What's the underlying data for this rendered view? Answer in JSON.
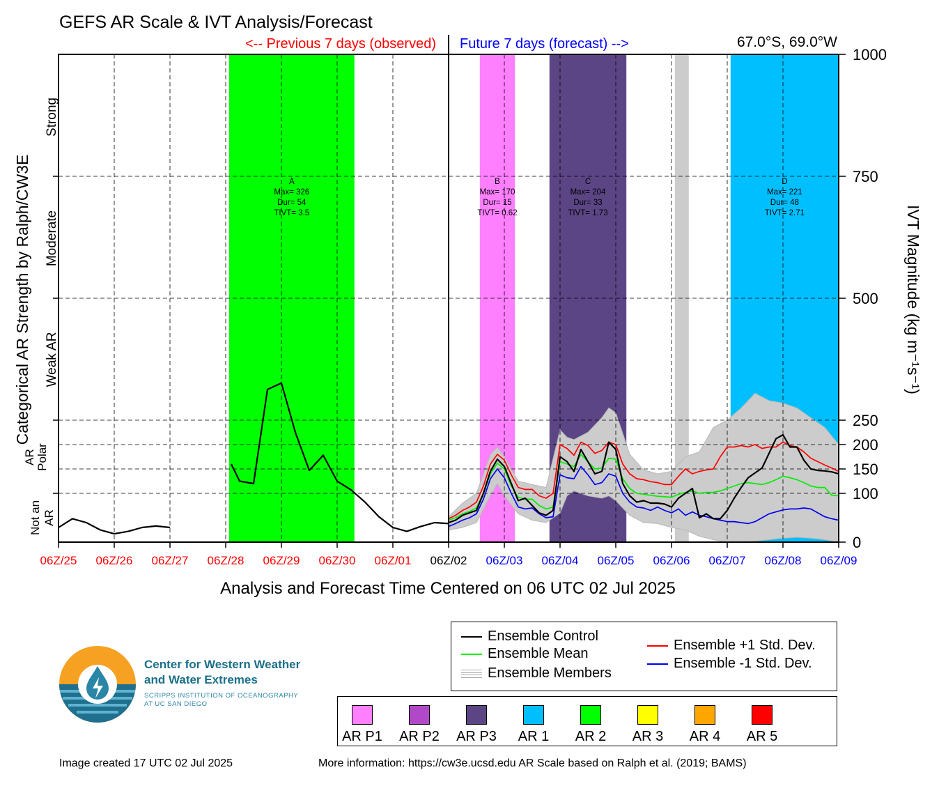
{
  "header": {
    "title": "GEFS AR Scale & IVT Analysis/Forecast",
    "previous_label": "<-- Previous 7 days (observed)",
    "future_label": "Future 7 days (forecast) -->",
    "location": "67.0°S, 69.0°W"
  },
  "axes": {
    "left_title": "Categorical AR Strength by Ralph/CW3E",
    "right_title": "IVT Magnitude (kg m⁻¹s⁻¹)",
    "xlabel": "Analysis and Forecast Time Centered on 06 UTC 02 Jul 2025",
    "categories": [
      {
        "label": "Strong",
        "range": [
          750,
          1000
        ]
      },
      {
        "label": "Moderate",
        "range": [
          500,
          750
        ]
      },
      {
        "label": "Weak AR",
        "range": [
          250,
          500
        ]
      },
      {
        "label": "Polar AR",
        "range": [
          100,
          250
        ]
      },
      {
        "label": "Not an AR",
        "range": [
          0,
          100
        ]
      }
    ]
  },
  "chart_data": {
    "type": "line",
    "title": "GEFS AR Scale & IVT Analysis/Forecast",
    "xlabel": "Analysis and Forecast Time Centered on 06 UTC 02 Jul 2025",
    "ylabel": "IVT Magnitude (kg m⁻¹s⁻¹)",
    "ylim": [
      0,
      1000
    ],
    "xlim": [
      "06Z/25",
      "06Z/09"
    ],
    "grid": true,
    "x_ticks": [
      {
        "label": "06Z/25",
        "color": "#ff0000"
      },
      {
        "label": "06Z/26",
        "color": "#ff0000"
      },
      {
        "label": "06Z/27",
        "color": "#ff0000"
      },
      {
        "label": "06Z/28",
        "color": "#ff0000"
      },
      {
        "label": "06Z/29",
        "color": "#ff0000"
      },
      {
        "label": "06Z/30",
        "color": "#ff0000"
      },
      {
        "label": "06Z/01",
        "color": "#ff0000"
      },
      {
        "label": "06Z/02",
        "color": "#000000"
      },
      {
        "label": "06Z/03",
        "color": "#0000ff"
      },
      {
        "label": "06Z/04",
        "color": "#0000ff"
      },
      {
        "label": "06Z/05",
        "color": "#0000ff"
      },
      {
        "label": "06Z/06",
        "color": "#0000ff"
      },
      {
        "label": "06Z/07",
        "color": "#0000ff"
      },
      {
        "label": "06Z/08",
        "color": "#0000ff"
      },
      {
        "label": "06Z/09",
        "color": "#0000ff"
      }
    ],
    "y_ticks": [
      0,
      100,
      150,
      200,
      250,
      500,
      750,
      1000
    ],
    "ar_periods": [
      {
        "id": "A",
        "start_day": 3.06,
        "end_day": 5.31,
        "color": "#00ff00",
        "ymax": 1000,
        "max": "326",
        "dur": "54",
        "tivt": "3.5"
      },
      {
        "id": "B",
        "start_day": 7.56,
        "end_day": 8.19,
        "color": "#ff80ff",
        "ymax": 1000,
        "max": "170",
        "dur": "15",
        "tivt": "0.62"
      },
      {
        "id": "C",
        "start_day": 8.81,
        "end_day": 10.19,
        "color": "#5b4585",
        "ymax": 1000,
        "max": "204",
        "dur": "33",
        "tivt": "1.73"
      },
      {
        "id": "E",
        "start_day": 11.06,
        "end_day": 11.31,
        "color": "#cccccc",
        "ymax": 1000,
        "max": "",
        "dur": "",
        "tivt": ""
      },
      {
        "id": "D",
        "start_day": 12.06,
        "end_day": 14.0,
        "color": "#00bfff",
        "ymax": 1000,
        "max": "221",
        "dur": "48",
        "tivt": "2.71"
      }
    ],
    "period_text_labels": {
      "max": "Max=",
      "dur": "Dur=",
      "tivt": "TIVT="
    },
    "series": [
      {
        "name": "Ensemble Control",
        "color": "#000000",
        "segments": [
          {
            "x": [
              0,
              0.25,
              0.5,
              0.75,
              1.0,
              1.25,
              1.5,
              1.75,
              2.0
            ],
            "y": [
              30,
              48,
              40,
              25,
              17,
              22,
              30,
              33,
              30
            ]
          },
          {
            "x": [
              3.1,
              3.25,
              3.5,
              3.75,
              4.0,
              4.25,
              4.5,
              4.75,
              5.0,
              5.25,
              5.5,
              5.75,
              6.0,
              6.25,
              6.5,
              6.75,
              7.0
            ],
            "y": [
              160,
              125,
              120,
              313,
              326,
              225,
              147,
              178,
              125,
              107,
              82,
              52,
              30,
              22,
              32,
              40,
              38
            ]
          },
          {
            "x": [
              7.0,
              7.125,
              7.25,
              7.375,
              7.5,
              7.625,
              7.75,
              7.875,
              8.0,
              8.125,
              8.25,
              8.375,
              8.5,
              8.625,
              8.75,
              8.875,
              9.0,
              9.125,
              9.25,
              9.375,
              9.5,
              9.625,
              9.75,
              9.875,
              10.0,
              10.125,
              10.25,
              10.375,
              10.5,
              10.625,
              10.75,
              10.875,
              11.0,
              11.125,
              11.25,
              11.375,
              11.5,
              11.625,
              11.75,
              11.875,
              12.0,
              12.125,
              12.25,
              12.375,
              12.5,
              12.625,
              12.75,
              12.875,
              13.0,
              13.125,
              13.25,
              13.375,
              13.5,
              13.625,
              13.75,
              13.875,
              14.0
            ],
            "y": [
              40,
              45,
              55,
              60,
              65,
              100,
              145,
              170,
              155,
              120,
              85,
              90,
              75,
              60,
              55,
              65,
              175,
              165,
              145,
              190,
              165,
              140,
              145,
              205,
              190,
              120,
              95,
              82,
              85,
              80,
              80,
              78,
              72,
              90,
              100,
              110,
              50,
              58,
              48,
              48,
              65,
              90,
              112,
              132,
              142,
              152,
              182,
              212,
              220,
              195,
              195,
              168,
              150,
              147,
              146,
              144,
              140
            ]
          }
        ]
      },
      {
        "name": "Ensemble Mean",
        "color": "#00ee00",
        "segments": [
          {
            "x": [
              7.0,
              7.125,
              7.25,
              7.375,
              7.5,
              7.625,
              7.75,
              7.875,
              8.0,
              8.125,
              8.25,
              8.375,
              8.5,
              8.625,
              8.75,
              8.875,
              9.0,
              9.125,
              9.25,
              9.375,
              9.5,
              9.625,
              9.75,
              9.875,
              10.0,
              10.125,
              10.25,
              10.375,
              10.5,
              10.625,
              10.75,
              10.875,
              11.0,
              11.125,
              11.25,
              11.375,
              11.5,
              11.625,
              11.75,
              11.875,
              12.0,
              12.125,
              12.25,
              12.375,
              12.5,
              12.625,
              12.75,
              12.875,
              13.0,
              13.125,
              13.25,
              13.375,
              13.5,
              13.625,
              13.75,
              13.875,
              14.0
            ],
            "y": [
              45,
              50,
              58,
              63,
              70,
              100,
              140,
              162,
              150,
              115,
              92,
              88,
              88,
              75,
              68,
              72,
              165,
              160,
              155,
              180,
              165,
              150,
              152,
              172,
              170,
              130,
              110,
              100,
              98,
              96,
              94,
              93,
              92,
              98,
              102,
              105,
              100,
              102,
              102,
              105,
              110,
              115,
              120,
              122,
              120,
              118,
              122,
              128,
              135,
              132,
              128,
              122,
              115,
              112,
              112,
              96,
              95
            ]
          }
        ]
      },
      {
        "name": "Ensemble +1 Std. Dev.",
        "color": "#ff0000",
        "segments": [
          {
            "x": [
              7.0,
              7.125,
              7.25,
              7.375,
              7.5,
              7.625,
              7.75,
              7.875,
              8.0,
              8.125,
              8.25,
              8.375,
              8.5,
              8.625,
              8.75,
              8.875,
              9.0,
              9.125,
              9.25,
              9.375,
              9.5,
              9.625,
              9.75,
              9.875,
              10.0,
              10.125,
              10.25,
              10.375,
              10.5,
              10.625,
              10.75,
              10.875,
              11.0,
              11.125,
              11.25,
              11.375,
              11.5,
              11.625,
              11.75,
              11.875,
              12.0,
              12.125,
              12.25,
              12.375,
              12.5,
              12.625,
              12.75,
              12.875,
              13.0,
              13.125,
              13.25,
              13.375,
              13.5,
              13.625,
              13.75,
              13.875,
              14.0
            ],
            "y": [
              48,
              55,
              65,
              72,
              82,
              115,
              160,
              180,
              168,
              138,
              112,
              108,
              108,
              95,
              90,
              100,
              200,
              192,
              178,
              205,
              198,
              182,
              188,
              205,
              200,
              160,
              140,
              130,
              128,
              124,
              122,
              118,
              118,
              135,
              150,
              140,
              145,
              148,
              150,
              175,
              195,
              195,
              198,
              195,
              200,
              192,
              195,
              195,
              205,
              198,
              195,
              185,
              172,
              165,
              158,
              152,
              145
            ]
          }
        ]
      },
      {
        "name": "Ensemble -1 Std. Dev.",
        "color": "#0000ee",
        "segments": [
          {
            "x": [
              7.0,
              7.125,
              7.25,
              7.375,
              7.5,
              7.625,
              7.75,
              7.875,
              8.0,
              8.125,
              8.25,
              8.375,
              8.5,
              8.625,
              8.75,
              8.875,
              9.0,
              9.125,
              9.25,
              9.375,
              9.5,
              9.625,
              9.75,
              9.875,
              10.0,
              10.125,
              10.25,
              10.375,
              10.5,
              10.625,
              10.75,
              10.875,
              11.0,
              11.125,
              11.25,
              11.375,
              11.5,
              11.625,
              11.75,
              11.875,
              12.0,
              12.125,
              12.25,
              12.375,
              12.5,
              12.625,
              12.75,
              12.875,
              13.0,
              13.125,
              13.25,
              13.375,
              13.5,
              13.625,
              13.75,
              13.875,
              14.0
            ],
            "y": [
              32,
              38,
              45,
              50,
              58,
              88,
              130,
              150,
              132,
              100,
              72,
              68,
              70,
              58,
              50,
              52,
              138,
              132,
              130,
              155,
              138,
              118,
              122,
              140,
              135,
              100,
              82,
              72,
              70,
              65,
              72,
              65,
              60,
              68,
              55,
              62,
              55,
              52,
              48,
              45,
              42,
              42,
              40,
              38,
              42,
              50,
              58,
              62,
              66,
              68,
              68,
              70,
              68,
              60,
              52,
              48,
              45
            ]
          }
        ]
      }
    ],
    "ensemble_envelope": {
      "name": "Ensemble Members",
      "color": "#cccccc",
      "x": [
        7.0,
        7.25,
        7.5,
        7.75,
        7.875,
        8.0,
        8.25,
        8.5,
        8.75,
        9.0,
        9.125,
        9.25,
        9.5,
        9.75,
        9.875,
        10.0,
        10.25,
        10.5,
        10.75,
        11.0,
        11.25,
        11.5,
        11.75,
        12.0,
        12.25,
        12.5,
        12.75,
        13.0,
        13.25,
        13.5,
        13.75,
        14.0
      ],
      "upper": [
        52,
        80,
        100,
        180,
        195,
        175,
        125,
        118,
        112,
        230,
        215,
        210,
        225,
        255,
        275,
        265,
        180,
        148,
        140,
        145,
        175,
        185,
        235,
        250,
        275,
        305,
        290,
        285,
        275,
        255,
        235,
        200
      ],
      "lower": [
        25,
        30,
        40,
        95,
        120,
        95,
        58,
        45,
        40,
        60,
        95,
        105,
        95,
        90,
        95,
        85,
        55,
        40,
        38,
        30,
        25,
        12,
        5,
        0,
        0,
        2,
        5,
        8,
        10,
        8,
        5,
        0
      ]
    }
  },
  "legend": {
    "items": [
      {
        "label": "Ensemble Control",
        "color": "#000000"
      },
      {
        "label": "Ensemble Mean",
        "color": "#00ee00"
      },
      {
        "label": "Ensemble Members",
        "color": "#aaaaaa"
      },
      {
        "label": "Ensemble +1 Std. Dev.",
        "color": "#ff0000"
      },
      {
        "label": "Ensemble -1 Std. Dev.",
        "color": "#0000ee"
      }
    ]
  },
  "ar_scale_legend": [
    {
      "label": "AR P1",
      "color": "#ff80ff"
    },
    {
      "label": "AR P2",
      "color": "#b048c8"
    },
    {
      "label": "AR P3",
      "color": "#5b4585"
    },
    {
      "label": "AR 1",
      "color": "#00bfff"
    },
    {
      "label": "AR 2",
      "color": "#00ff00"
    },
    {
      "label": "AR 3",
      "color": "#ffff00"
    },
    {
      "label": "AR 4",
      "color": "#ffa500"
    },
    {
      "label": "AR 5",
      "color": "#ff0000"
    }
  ],
  "logo": {
    "line1": "Center for Western Weather",
    "line2": "and Water Extremes",
    "line3": "SCRIPPS INSTITUTION OF OCEANOGRAPHY",
    "line4": "AT UC SAN DIEGO"
  },
  "footer": {
    "created": "Image created 17 UTC 02 Jul 2025",
    "more_info": "More information: https://cw3e.ucsd.edu AR Scale based on Ralph et al. (2019; BAMS)"
  }
}
